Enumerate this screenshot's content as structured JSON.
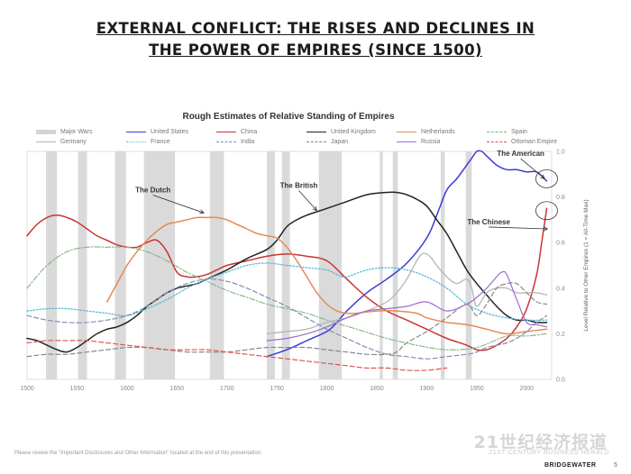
{
  "slide": {
    "title_line1": "EXTERNAL CONFLICT: THE RISES AND DECLINES IN",
    "title_line2": "THE POWER OF EMPIRES (SINCE 1500)",
    "disclaimer": "Please review the \"Important Disclosures and Other Information\" located at the end of this presentation.",
    "brand": "BRIDGEWATER",
    "page_number": "5",
    "watermark": "21世纪经济报道",
    "watermark_sub": "21ST CENTURY BUSINESS HERALD"
  },
  "chart_data": {
    "type": "line",
    "title": "Rough Estimates of Relative Standing of Empires",
    "ylabel": "Level Relative to Other Empires (1 = All-Time Max)",
    "xlim": [
      1500,
      2025
    ],
    "ylim": [
      0,
      1
    ],
    "x_ticks": [
      1500,
      1550,
      1600,
      1650,
      1700,
      1750,
      1800,
      1850,
      1900,
      1950,
      2000
    ],
    "y_ticks": [
      0,
      0.2,
      0.4,
      0.6,
      0.8,
      1
    ],
    "y_tick_labels": [
      "0.0",
      "0.2",
      "0.4",
      "0.6",
      "0.8",
      "1.0"
    ],
    "grid": false,
    "legend_position": "top",
    "major_wars": [
      [
        1519,
        1530
      ],
      [
        1551,
        1560
      ],
      [
        1588,
        1599
      ],
      [
        1617,
        1648
      ],
      [
        1683,
        1697
      ],
      [
        1740,
        1748
      ],
      [
        1755,
        1763
      ],
      [
        1792,
        1815
      ],
      [
        1853,
        1856
      ],
      [
        1866,
        1871
      ],
      [
        1914,
        1918
      ],
      [
        1939,
        1945
      ]
    ],
    "legend": [
      {
        "name": "Major Wars",
        "color": "#d3d3d3",
        "style": "band"
      },
      {
        "name": "United States",
        "color": "#3b3bd6",
        "style": "solid"
      },
      {
        "name": "China",
        "color": "#cc3333",
        "style": "solid"
      },
      {
        "name": "United Kingdom",
        "color": "#222222",
        "style": "solid"
      },
      {
        "name": "Netherlands",
        "color": "#e58a55",
        "style": "solid"
      },
      {
        "name": "Spain",
        "color": "#7fb37f",
        "style": "dashdot"
      },
      {
        "name": "Germany",
        "color": "#b5b5b5",
        "style": "solid"
      },
      {
        "name": "France",
        "color": "#5bb8d6",
        "style": "dotted"
      },
      {
        "name": "India",
        "color": "#7f8fb0",
        "style": "dashed"
      },
      {
        "name": "Japan",
        "color": "#888888",
        "style": "dashed"
      },
      {
        "name": "Russia",
        "color": "#9b6fd0",
        "style": "solid"
      },
      {
        "name": "Ottoman Empire",
        "color": "#e05555",
        "style": "dashed"
      }
    ],
    "series": [
      {
        "name": "United States",
        "color": "#3b3bd6",
        "style": "solid",
        "width": 1.5,
        "x": [
          1740,
          1760,
          1780,
          1800,
          1810,
          1820,
          1840,
          1860,
          1880,
          1900,
          1910,
          1920,
          1930,
          1940,
          1945,
          1950,
          1955,
          1960,
          1970,
          1980,
          1990,
          2000,
          2010,
          2020
        ],
        "y": [
          0.1,
          0.13,
          0.17,
          0.21,
          0.25,
          0.3,
          0.38,
          0.44,
          0.51,
          0.62,
          0.72,
          0.83,
          0.88,
          0.94,
          0.97,
          1.0,
          1.0,
          0.98,
          0.94,
          0.92,
          0.92,
          0.91,
          0.91,
          0.87
        ]
      },
      {
        "name": "China",
        "color": "#cc3333",
        "style": "solid",
        "width": 1.5,
        "x": [
          1500,
          1510,
          1520,
          1530,
          1540,
          1550,
          1560,
          1570,
          1580,
          1590,
          1600,
          1610,
          1620,
          1630,
          1640,
          1650,
          1660,
          1670,
          1680,
          1690,
          1700,
          1720,
          1740,
          1760,
          1780,
          1800,
          1820,
          1840,
          1860,
          1880,
          1900,
          1920,
          1940,
          1950,
          1960,
          1970,
          1980,
          1990,
          2000,
          2010,
          2015,
          2020
        ],
        "y": [
          0.63,
          0.68,
          0.71,
          0.72,
          0.71,
          0.69,
          0.66,
          0.63,
          0.61,
          0.59,
          0.58,
          0.58,
          0.6,
          0.61,
          0.56,
          0.47,
          0.45,
          0.45,
          0.46,
          0.48,
          0.5,
          0.52,
          0.54,
          0.55,
          0.54,
          0.52,
          0.44,
          0.36,
          0.3,
          0.26,
          0.22,
          0.18,
          0.15,
          0.13,
          0.13,
          0.15,
          0.18,
          0.23,
          0.31,
          0.46,
          0.6,
          0.75
        ]
      },
      {
        "name": "United Kingdom",
        "color": "#222222",
        "style": "solid",
        "width": 1.5,
        "x": [
          1500,
          1510,
          1520,
          1530,
          1540,
          1550,
          1560,
          1570,
          1580,
          1590,
          1600,
          1610,
          1620,
          1630,
          1640,
          1650,
          1660,
          1670,
          1680,
          1700,
          1720,
          1740,
          1750,
          1760,
          1770,
          1780,
          1800,
          1820,
          1840,
          1860,
          1870,
          1880,
          1890,
          1900,
          1910,
          1920,
          1930,
          1940,
          1950,
          1960,
          1970,
          1980,
          1990,
          2000,
          2010,
          2020
        ],
        "y": [
          0.18,
          0.17,
          0.15,
          0.13,
          0.12,
          0.14,
          0.17,
          0.2,
          0.22,
          0.23,
          0.25,
          0.28,
          0.32,
          0.35,
          0.38,
          0.4,
          0.41,
          0.42,
          0.44,
          0.48,
          0.53,
          0.57,
          0.61,
          0.67,
          0.7,
          0.72,
          0.75,
          0.78,
          0.81,
          0.82,
          0.82,
          0.81,
          0.79,
          0.76,
          0.7,
          0.64,
          0.56,
          0.48,
          0.42,
          0.37,
          0.32,
          0.28,
          0.26,
          0.26,
          0.25,
          0.25
        ]
      },
      {
        "name": "Netherlands",
        "color": "#e58a55",
        "style": "solid",
        "width": 1.5,
        "x": [
          1580,
          1590,
          1600,
          1610,
          1620,
          1630,
          1640,
          1650,
          1660,
          1670,
          1680,
          1690,
          1700,
          1710,
          1720,
          1730,
          1740,
          1750,
          1760,
          1770,
          1780,
          1790,
          1800,
          1810,
          1820,
          1830,
          1850,
          1870,
          1890,
          1900,
          1920,
          1940,
          1960,
          1980,
          2000,
          2020
        ],
        "y": [
          0.34,
          0.42,
          0.5,
          0.56,
          0.61,
          0.65,
          0.68,
          0.69,
          0.7,
          0.71,
          0.71,
          0.71,
          0.7,
          0.68,
          0.66,
          0.64,
          0.63,
          0.62,
          0.58,
          0.52,
          0.45,
          0.38,
          0.33,
          0.3,
          0.29,
          0.29,
          0.3,
          0.3,
          0.29,
          0.27,
          0.25,
          0.24,
          0.22,
          0.2,
          0.21,
          0.22
        ]
      },
      {
        "name": "Spain",
        "color": "#7fb37f",
        "style": "dashdot",
        "width": 1.1,
        "x": [
          1500,
          1520,
          1540,
          1560,
          1580,
          1600,
          1620,
          1640,
          1660,
          1680,
          1700,
          1720,
          1740,
          1760,
          1780,
          1800,
          1830,
          1860,
          1890,
          1920,
          1950,
          1980,
          2000,
          2020
        ],
        "y": [
          0.4,
          0.5,
          0.56,
          0.58,
          0.58,
          0.58,
          0.56,
          0.52,
          0.47,
          0.43,
          0.39,
          0.36,
          0.33,
          0.31,
          0.29,
          0.26,
          0.22,
          0.18,
          0.15,
          0.13,
          0.14,
          0.19,
          0.19,
          0.2
        ]
      },
      {
        "name": "Germany",
        "color": "#b5b5b5",
        "style": "solid",
        "width": 1.3,
        "x": [
          1740,
          1760,
          1780,
          1800,
          1820,
          1840,
          1860,
          1870,
          1880,
          1890,
          1895,
          1900,
          1905,
          1910,
          1920,
          1930,
          1940,
          1945,
          1950,
          1960,
          1970,
          1980,
          1990,
          2000,
          2010,
          2020
        ],
        "y": [
          0.2,
          0.21,
          0.22,
          0.25,
          0.27,
          0.3,
          0.34,
          0.38,
          0.44,
          0.52,
          0.55,
          0.55,
          0.53,
          0.5,
          0.45,
          0.42,
          0.44,
          0.4,
          0.32,
          0.38,
          0.4,
          0.4,
          0.38,
          0.38,
          0.38,
          0.37
        ]
      },
      {
        "name": "France",
        "color": "#5bb8d6",
        "style": "dotted",
        "width": 1.3,
        "x": [
          1500,
          1520,
          1540,
          1560,
          1580,
          1600,
          1620,
          1640,
          1660,
          1680,
          1700,
          1720,
          1740,
          1760,
          1780,
          1800,
          1810,
          1820,
          1840,
          1860,
          1880,
          1900,
          1920,
          1940,
          1960,
          1980,
          2000,
          2020
        ],
        "y": [
          0.3,
          0.31,
          0.31,
          0.3,
          0.29,
          0.28,
          0.31,
          0.35,
          0.4,
          0.44,
          0.47,
          0.5,
          0.51,
          0.5,
          0.49,
          0.48,
          0.46,
          0.45,
          0.48,
          0.49,
          0.48,
          0.45,
          0.4,
          0.33,
          0.29,
          0.27,
          0.26,
          0.26
        ]
      },
      {
        "name": "India",
        "color": "#7f8fb0",
        "style": "dashed",
        "width": 1.2,
        "x": [
          1500,
          1520,
          1540,
          1560,
          1580,
          1600,
          1620,
          1640,
          1660,
          1680,
          1700,
          1720,
          1740,
          1760,
          1780,
          1800,
          1820,
          1840,
          1860,
          1880,
          1900,
          1920,
          1940,
          1950,
          1960,
          1970,
          1980,
          1990,
          2000,
          2010,
          2020
        ],
        "y": [
          0.28,
          0.26,
          0.25,
          0.25,
          0.26,
          0.28,
          0.32,
          0.38,
          0.42,
          0.44,
          0.43,
          0.4,
          0.36,
          0.32,
          0.27,
          0.22,
          0.18,
          0.14,
          0.11,
          0.1,
          0.09,
          0.1,
          0.11,
          0.12,
          0.14,
          0.15,
          0.16,
          0.18,
          0.21,
          0.25,
          0.28
        ]
      },
      {
        "name": "Japan",
        "color": "#888888",
        "style": "dashed",
        "width": 1.2,
        "x": [
          1500,
          1520,
          1540,
          1560,
          1580,
          1600,
          1620,
          1640,
          1660,
          1680,
          1700,
          1720,
          1740,
          1760,
          1780,
          1800,
          1820,
          1840,
          1860,
          1870,
          1880,
          1900,
          1920,
          1940,
          1950,
          1960,
          1970,
          1980,
          1990,
          2000,
          2010,
          2020
        ],
        "y": [
          0.1,
          0.11,
          0.11,
          0.12,
          0.13,
          0.14,
          0.14,
          0.13,
          0.12,
          0.12,
          0.12,
          0.13,
          0.14,
          0.14,
          0.14,
          0.13,
          0.12,
          0.11,
          0.11,
          0.12,
          0.16,
          0.21,
          0.27,
          0.33,
          0.28,
          0.33,
          0.4,
          0.42,
          0.42,
          0.38,
          0.34,
          0.33
        ]
      },
      {
        "name": "Russia",
        "color": "#9b6fd0",
        "style": "solid",
        "width": 1.2,
        "x": [
          1740,
          1760,
          1780,
          1800,
          1820,
          1840,
          1860,
          1880,
          1900,
          1920,
          1940,
          1950,
          1960,
          1970,
          1975,
          1980,
          1990,
          2000,
          2010,
          2020
        ],
        "y": [
          0.17,
          0.18,
          0.2,
          0.23,
          0.27,
          0.3,
          0.31,
          0.32,
          0.34,
          0.3,
          0.33,
          0.36,
          0.4,
          0.45,
          0.47,
          0.46,
          0.35,
          0.25,
          0.24,
          0.23
        ]
      },
      {
        "name": "Ottoman Empire",
        "color": "#e05555",
        "style": "dashed",
        "width": 1.2,
        "x": [
          1500,
          1520,
          1540,
          1560,
          1580,
          1600,
          1620,
          1640,
          1660,
          1680,
          1700,
          1720,
          1740,
          1760,
          1780,
          1800,
          1820,
          1840,
          1860,
          1880,
          1900,
          1920
        ],
        "y": [
          0.16,
          0.17,
          0.17,
          0.17,
          0.16,
          0.15,
          0.14,
          0.13,
          0.13,
          0.13,
          0.12,
          0.11,
          0.1,
          0.09,
          0.08,
          0.07,
          0.06,
          0.05,
          0.05,
          0.04,
          0.04,
          0.05
        ]
      }
    ],
    "annotations": [
      {
        "text": "The Dutch",
        "x": 1677,
        "y": 0.73,
        "label_x": 1626,
        "label_y": 0.82
      },
      {
        "text": "The British",
        "x": 1790,
        "y": 0.74,
        "label_x": 1772,
        "label_y": 0.84
      },
      {
        "text": "The American",
        "x": 2018,
        "y": 0.88,
        "label_x": 1994,
        "label_y": 0.98
      },
      {
        "text": "The Chinese",
        "x": 2021,
        "y": 0.66,
        "label_x": 1962,
        "label_y": 0.68
      }
    ]
  }
}
